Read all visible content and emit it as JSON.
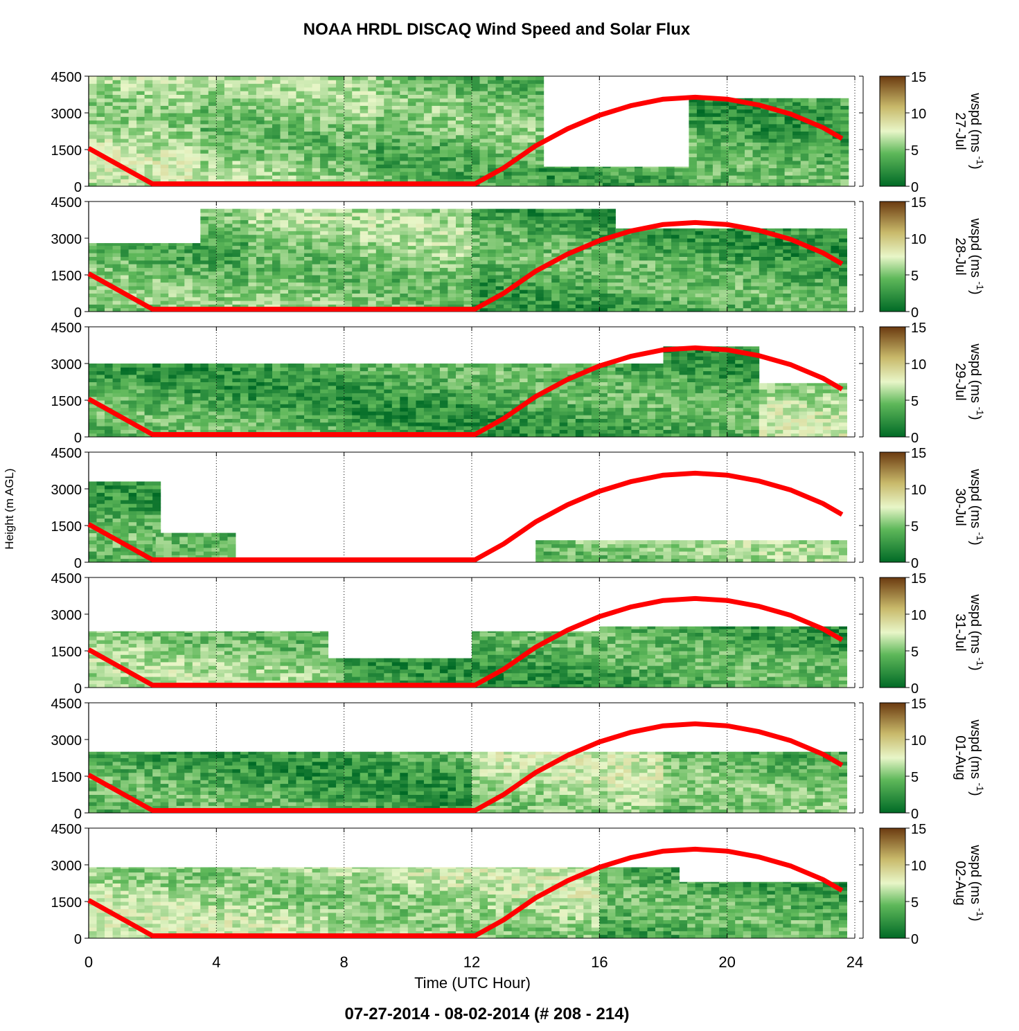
{
  "title": "NOAA HRDL DISCAQ Wind Speed and Solar Flux",
  "footer": "07-27-2014 - 08-02-2014   (# 208 - 214)",
  "xlabel": "Time (UTC Hour)",
  "ylabel": "Height (m AGL)",
  "colorbar_label": "wspd (ms",
  "colorbar_sup": "-1",
  "colorbar_close": ")",
  "colors": {
    "solar": "#ff0000",
    "low": "#006a26",
    "mid": "#5fb85a",
    "pale": "#e8f6c8",
    "high": "#6b3a10"
  },
  "chart_data": {
    "type": "heatmap",
    "xlim": [
      0,
      24
    ],
    "x_ticks": [
      0,
      4,
      8,
      12,
      16,
      20,
      24
    ],
    "ylim": [
      0,
      4500
    ],
    "y_ticks": [
      0,
      1500,
      3000,
      4500
    ],
    "colorbar_range": [
      0,
      15
    ],
    "colorbar_ticks": [
      0,
      5,
      10,
      15
    ],
    "colormap": [
      "#006a26",
      "#5fb85a",
      "#e8f6c8",
      "#c8b96a",
      "#6b3a10"
    ],
    "solar_flux_curve": {
      "name": "Solar Flux",
      "x": [
        0,
        2,
        12.1,
        13,
        14,
        15,
        16,
        17,
        18,
        19,
        20,
        21,
        22,
        23,
        23.6
      ],
      "y": [
        1550,
        100,
        100,
        750,
        1650,
        2350,
        2900,
        3300,
        3560,
        3640,
        3560,
        3320,
        2950,
        2400,
        1950
      ]
    },
    "panels": [
      {
        "date": "27-Jul",
        "coverage": [
          [
            0,
            14.1,
            0,
            4500
          ],
          [
            14.1,
            23.6,
            0,
            800
          ],
          [
            18.8,
            23.6,
            0,
            3600
          ]
        ],
        "speed": [
          [
            0,
            3.5,
            6
          ],
          [
            3.5,
            9,
            5
          ],
          [
            9,
            14.1,
            4
          ],
          [
            14.1,
            23.6,
            3
          ]
        ]
      },
      {
        "date": "28-Jul",
        "coverage": [
          [
            0,
            3.5,
            0,
            2800
          ],
          [
            3.5,
            16.5,
            0,
            4200
          ],
          [
            16.5,
            23.6,
            0,
            3400
          ]
        ],
        "speed": [
          [
            0,
            5,
            4
          ],
          [
            5,
            12,
            5
          ],
          [
            12,
            23.6,
            3
          ]
        ]
      },
      {
        "date": "29-Jul",
        "coverage": [
          [
            0,
            18,
            0,
            3000
          ],
          [
            18,
            21,
            0,
            3700
          ],
          [
            21,
            23.6,
            0,
            2200
          ]
        ],
        "speed": [
          [
            0,
            21,
            3
          ],
          [
            21,
            23.6,
            6
          ]
        ]
      },
      {
        "date": "30-Jul",
        "coverage": [
          [
            0,
            2.1,
            0,
            3300
          ],
          [
            2.1,
            4.6,
            0,
            1200
          ],
          [
            14,
            23.6,
            0,
            900
          ]
        ],
        "speed": [
          [
            0,
            4.6,
            3
          ],
          [
            14,
            23.6,
            5
          ]
        ]
      },
      {
        "date": "31-Jul",
        "coverage": [
          [
            0,
            7.5,
            0,
            2300
          ],
          [
            7.5,
            12,
            0,
            1200
          ],
          [
            12,
            16,
            0,
            2300
          ],
          [
            16,
            23.6,
            0,
            2500
          ]
        ],
        "speed": [
          [
            0,
            8,
            5
          ],
          [
            8,
            23.6,
            3
          ]
        ]
      },
      {
        "date": "01-Aug",
        "coverage": [
          [
            0,
            23.6,
            0,
            2500
          ]
        ],
        "speed": [
          [
            0,
            12,
            3
          ],
          [
            12,
            18,
            6
          ],
          [
            18,
            23.6,
            4
          ]
        ]
      },
      {
        "date": "02-Aug",
        "coverage": [
          [
            0,
            18.5,
            0,
            2900
          ],
          [
            18.5,
            23.6,
            0,
            2300
          ]
        ],
        "speed": [
          [
            0,
            16,
            6
          ],
          [
            16,
            23.6,
            3
          ]
        ]
      }
    ]
  }
}
